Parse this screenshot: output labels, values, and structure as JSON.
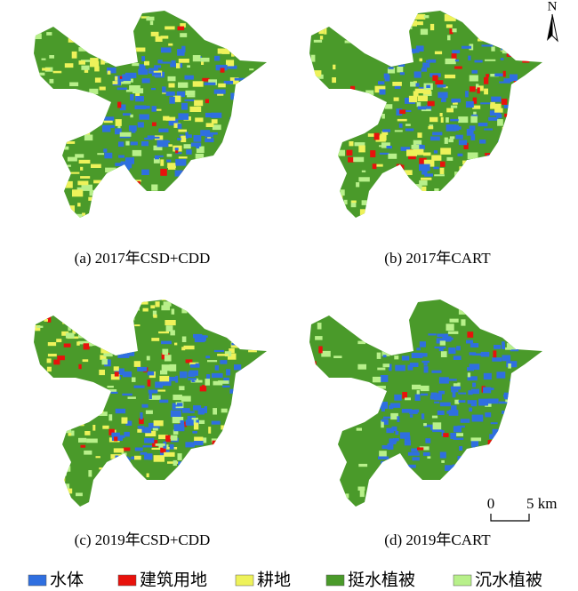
{
  "north": "N",
  "panels": [
    {
      "caption": "(a) 2017年CSD+CDD"
    },
    {
      "caption": "(b) 2017年CART"
    },
    {
      "caption": "(c) 2019年CSD+CDD"
    },
    {
      "caption": "(d) 2019年CART"
    }
  ],
  "scale_bar": {
    "start": "0",
    "end": "5 km"
  },
  "legend": [
    {
      "label": "水体",
      "color": "#2f6fe0"
    },
    {
      "label": "建筑用地",
      "color": "#e8120c"
    },
    {
      "label": "耕地",
      "color": "#eef25a"
    },
    {
      "label": "挺水植被",
      "color": "#4a9a2a"
    },
    {
      "label": "沉水植被",
      "color": "#b8f08a"
    }
  ]
}
